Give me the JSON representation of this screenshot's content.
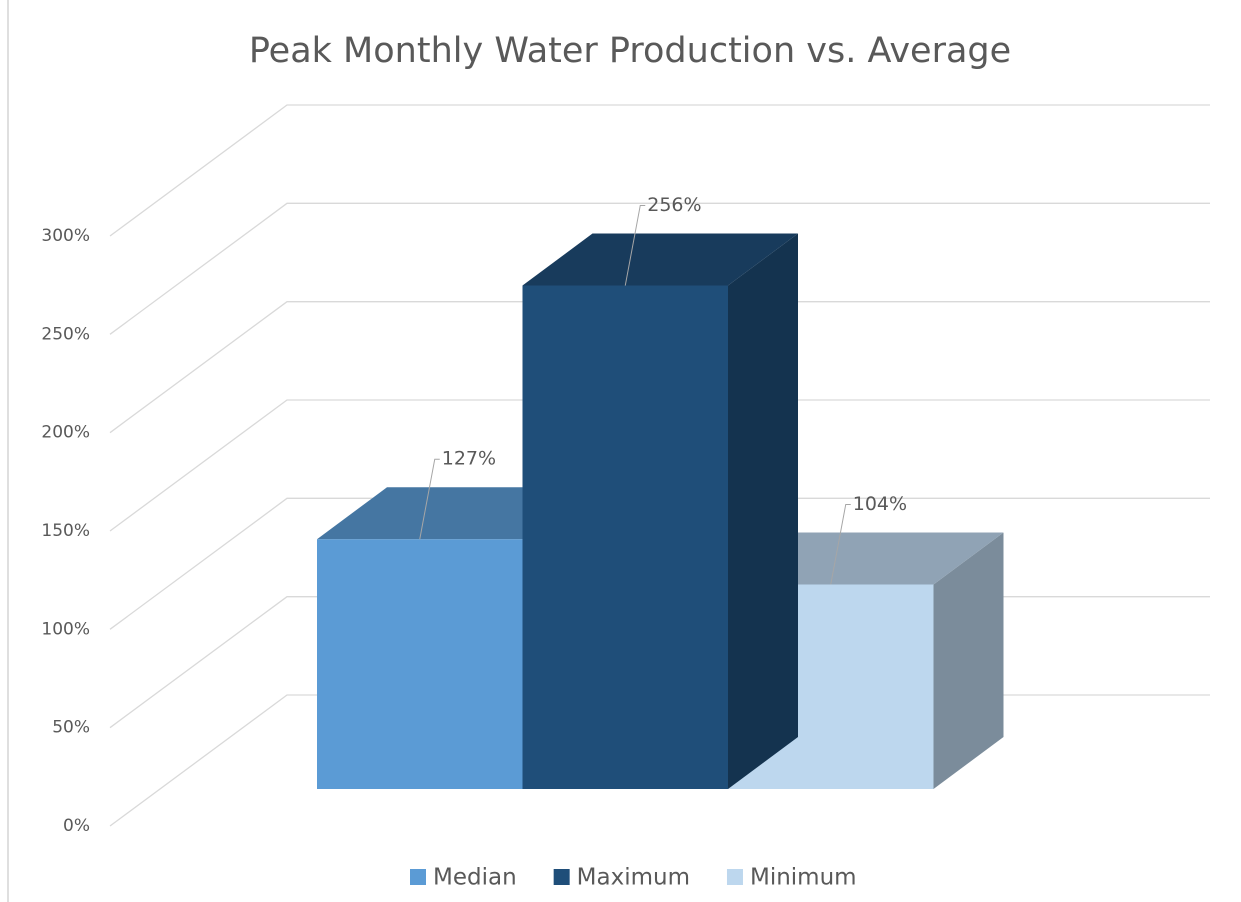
{
  "chart_data": {
    "type": "bar3d",
    "title": "Peak Monthly Water Production vs. Average",
    "series": [
      {
        "name": "Median",
        "color": "#5b9bd5",
        "values": [
          127
        ],
        "value_labels": [
          "127%"
        ]
      },
      {
        "name": "Maximum",
        "color": "#1f4e79",
        "values": [
          256
        ],
        "value_labels": [
          "256%"
        ]
      },
      {
        "name": "Minimum",
        "color": "#bdd7ee",
        "values": [
          104
        ],
        "value_labels": [
          "104%"
        ]
      }
    ],
    "ylim": [
      0,
      300
    ],
    "yticks": [
      {
        "value": 0,
        "label": "0%"
      },
      {
        "value": 50,
        "label": "50%"
      },
      {
        "value": 100,
        "label": "100%"
      },
      {
        "value": 150,
        "label": "150%"
      },
      {
        "value": 200,
        "label": "200%"
      },
      {
        "value": 250,
        "label": "250%"
      },
      {
        "value": 300,
        "label": "300%"
      }
    ],
    "grid": true,
    "legend": "bottom"
  }
}
